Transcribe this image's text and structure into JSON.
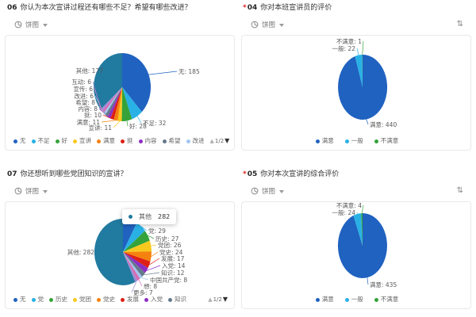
{
  "icons": {
    "sort_toggle": "⇅"
  },
  "palette": {
    "categorical": [
      "#2062c0",
      "#29b1e6",
      "#35a23a",
      "#f7c91e",
      "#f5820f",
      "#dd2015",
      "#8d2ec3",
      "#64798c",
      "#a2c6ef",
      "#d86ab2",
      "#9e8ad6"
    ],
    "other": "#217a9f",
    "required_asterisk": "#e02020"
  },
  "chart_data": [
    {
      "type": "pie",
      "number": "06",
      "required_mark": "",
      "title": "你认为本次宣讲过程还有哪些不足？希望有哪些改进？",
      "chart_type_selector": "饼图",
      "slices": [
        {
          "label": "无",
          "value": 185,
          "color": "#2062c0"
        },
        {
          "label": "不足",
          "value": 32,
          "color": "#29b1e6"
        },
        {
          "label": "好",
          "value": 28,
          "color": "#35a23a"
        },
        {
          "label": "宣讲",
          "value": 11,
          "color": "#f7c91e"
        },
        {
          "label": "满意",
          "value": 11,
          "color": "#f5820f"
        },
        {
          "label": "挺",
          "value": 10,
          "color": "#dd2015"
        },
        {
          "label": "内容",
          "value": 8,
          "color": "#8d2ec3"
        },
        {
          "label": "希望",
          "value": 8,
          "color": "#64798c"
        },
        {
          "label": "改进",
          "value": 6,
          "color": "#a2c6ef"
        },
        {
          "label": "宣传",
          "value": 6,
          "color": "#d86ab2"
        },
        {
          "label": "互动",
          "value": 6,
          "color": "#9e8ad6"
        },
        {
          "label": "其他",
          "value": 177,
          "color": "#217a9f"
        }
      ],
      "legend_visible": [
        "无",
        "不足",
        "好",
        "宣讲",
        "满意",
        "挺",
        "内容",
        "希望",
        "改进"
      ],
      "legend_pager": {
        "prev": "▲",
        "label": "1/2",
        "next": "▼"
      }
    },
    {
      "type": "pie",
      "number": "04",
      "required_mark": "*",
      "title": "你对本班宣讲员的评价",
      "chart_type_selector": "饼图",
      "slices": [
        {
          "label": "满意",
          "value": 440,
          "color": "#2062c0"
        },
        {
          "label": "一般",
          "value": 22,
          "color": "#29b1e6"
        },
        {
          "label": "不满意",
          "value": 1,
          "color": "#35a23a"
        }
      ],
      "legend_visible": [
        "满意",
        "一般",
        "不满意"
      ]
    },
    {
      "type": "pie",
      "number": "07",
      "required_mark": "",
      "title": "你还想听到哪些党团知识的宣讲？",
      "chart_type_selector": "饼图",
      "slices": [
        {
          "label": "无",
          "value": 40,
          "color": "#2062c0",
          "label_hidden": true
        },
        {
          "label": "党",
          "value": 29,
          "color": "#29b1e6"
        },
        {
          "label": "历史",
          "value": 27,
          "color": "#35a23a"
        },
        {
          "label": "党团",
          "value": 26,
          "color": "#f7c91e"
        },
        {
          "label": "党史",
          "value": 24,
          "color": "#f5820f"
        },
        {
          "label": "发展",
          "value": 17,
          "color": "#dd2015"
        },
        {
          "label": "入党",
          "value": 14,
          "color": "#8d2ec3"
        },
        {
          "label": "知识",
          "value": 12,
          "color": "#64798c"
        },
        {
          "label": "中国共产党",
          "value": 8,
          "color": "#a2c6ef"
        },
        {
          "label": "想",
          "value": 8,
          "color": "#d86ab2"
        },
        {
          "label": "更多",
          "value": 7,
          "color": "#9e8ad6"
        },
        {
          "label": "其他",
          "value": 282,
          "color": "#217a9f"
        }
      ],
      "legend_visible": [
        "无",
        "党",
        "历史",
        "党团",
        "党史",
        "发展",
        "入党",
        "知识"
      ],
      "legend_pager": {
        "prev": "▲",
        "label": "1/2",
        "next": "▼"
      },
      "tooltip": {
        "label": "其他",
        "value": "282"
      }
    },
    {
      "type": "pie",
      "number": "05",
      "required_mark": "*",
      "title": "你对本次宣讲的综合评价",
      "chart_type_selector": "饼图",
      "slices": [
        {
          "label": "满意",
          "value": 435,
          "color": "#2062c0"
        },
        {
          "label": "一般",
          "value": 24,
          "color": "#29b1e6"
        },
        {
          "label": "不满意",
          "value": 4,
          "color": "#35a23a"
        }
      ],
      "legend_visible": [
        "满意",
        "一般",
        "不满意"
      ]
    }
  ]
}
